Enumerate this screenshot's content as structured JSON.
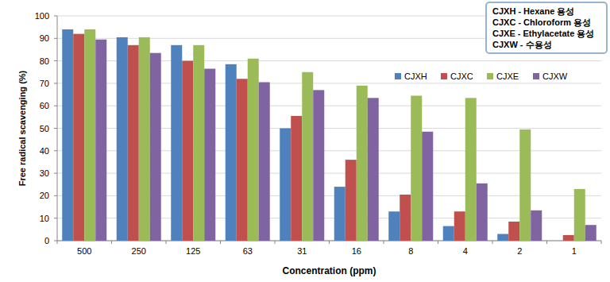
{
  "chart_data": {
    "type": "bar",
    "x_label": "Concentration  (ppm)",
    "y_label": "Free radical  scavenging (%)",
    "annotations": [
      "CJXH  - Hexane 용성",
      "CJXC  - Chloroform 용성",
      "CJXE  - Ethylacetate 용성",
      "CJXW  - 수용성"
    ],
    "categories": [
      "500",
      "250",
      "125",
      "63",
      "31",
      "16",
      "8",
      "4",
      "2",
      "1"
    ],
    "series": [
      {
        "name": "CJXH",
        "color": "#4f81bd",
        "values": [
          94,
          90.5,
          87,
          78.5,
          50,
          24,
          13,
          6.5,
          3,
          0
        ]
      },
      {
        "name": "CJXC",
        "color": "#c0504d",
        "values": [
          92,
          87,
          80,
          72,
          55.5,
          36,
          20.5,
          13,
          8.5,
          2.5
        ]
      },
      {
        "name": "CJXE",
        "color": "#9bbb59",
        "values": [
          94,
          90.5,
          87,
          81,
          75,
          69,
          64.5,
          63.5,
          49.5,
          23
        ]
      },
      {
        "name": "CJXW",
        "color": "#8064a2",
        "values": [
          89.5,
          83.5,
          76.5,
          70.5,
          67,
          63.5,
          48.5,
          25.5,
          13.5,
          7
        ]
      }
    ],
    "ylim": [
      0,
      100
    ],
    "yticks": [
      0,
      10,
      20,
      30,
      40,
      50,
      60,
      70,
      80,
      90,
      100
    ],
    "grid": true,
    "legend": "right"
  }
}
